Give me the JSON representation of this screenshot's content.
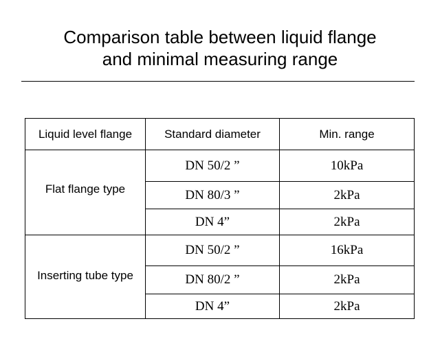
{
  "document": {
    "title_line1": "Comparison table between liquid flange",
    "title_line2": "and minimal measuring range"
  },
  "table": {
    "headers": [
      "Liquid level flange",
      "Standard diameter",
      "Min. range"
    ],
    "groups": [
      {
        "label": "Flat flange type",
        "rows": [
          {
            "diameter": "DN 50/2 ”",
            "range": "10kPa"
          },
          {
            "diameter": "DN 80/3 ”",
            "range": "2kPa"
          },
          {
            "diameter": "DN 4”",
            "range": "2kPa"
          }
        ]
      },
      {
        "label": "Inserting tube type",
        "rows": [
          {
            "diameter": "DN 50/2 ”",
            "range": "16kPa"
          },
          {
            "diameter": "DN 80/2 ”",
            "range": "2kPa"
          },
          {
            "diameter": "DN 4”",
            "range": "2kPa"
          }
        ]
      }
    ]
  }
}
